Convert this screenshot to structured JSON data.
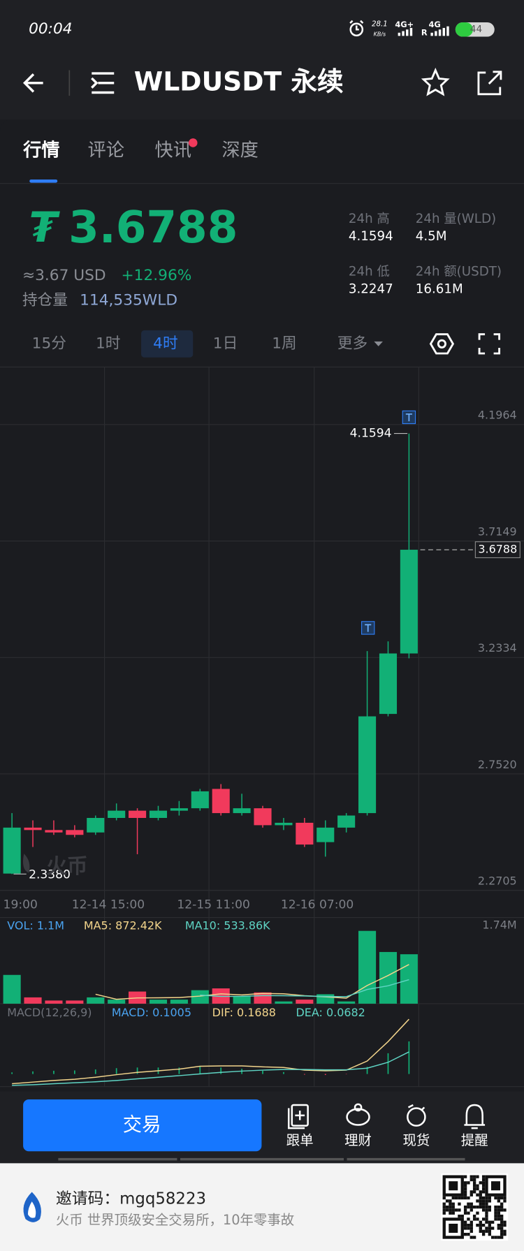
{
  "status_bar": {
    "time": "00:04",
    "net_speed": "28.1",
    "net_unit": "KB/s",
    "signal1": "4G+",
    "signal2": "4G",
    "roaming": "R",
    "battery": "44"
  },
  "header": {
    "title": "WLDUSDT 永续"
  },
  "tabs": [
    "行情",
    "评论",
    "快讯",
    "深度"
  ],
  "ticker": {
    "price": "3.6788",
    "usd": "≈3.67 USD",
    "change": "+12.96%",
    "oi_label": "持仓量",
    "oi_value": "114,535WLD",
    "stats": [
      {
        "label": "24h 高",
        "value": "4.1594"
      },
      {
        "label": "24h 量(WLD)",
        "value": "4.5M"
      },
      {
        "label": "24h 低",
        "value": "3.2247"
      },
      {
        "label": "24h 额(USDT)",
        "value": "16.61M"
      }
    ]
  },
  "intervals": [
    "15分",
    "1时",
    "4时",
    "1日",
    "1周",
    "更多"
  ],
  "watermark": "火币",
  "chart_data": [
    {
      "type": "candlestick",
      "open": [
        2.34,
        2.53,
        2.52,
        2.52,
        2.51,
        2.57,
        2.6,
        2.57,
        2.6,
        2.61,
        2.69,
        2.59,
        2.61,
        2.54,
        2.55,
        2.47,
        2.53,
        2.59,
        3.0,
        3.25
      ],
      "high": [
        2.59,
        2.56,
        2.56,
        2.54,
        2.58,
        2.63,
        2.61,
        2.62,
        2.64,
        2.69,
        2.71,
        2.67,
        2.62,
        2.57,
        2.57,
        2.56,
        2.59,
        3.26,
        3.3,
        4.1594
      ],
      "low": [
        2.338,
        2.45,
        2.5,
        2.49,
        2.5,
        2.56,
        2.42,
        2.56,
        2.58,
        2.6,
        2.58,
        2.58,
        2.53,
        2.52,
        2.45,
        2.41,
        2.51,
        2.58,
        2.99,
        3.23
      ],
      "close": [
        2.53,
        2.52,
        2.51,
        2.5,
        2.57,
        2.6,
        2.57,
        2.6,
        2.61,
        2.68,
        2.59,
        2.61,
        2.54,
        2.55,
        2.46,
        2.53,
        2.58,
        2.99,
        3.25,
        3.6788
      ],
      "up_color": "#12b076",
      "down_color": "#f13a5c",
      "ylim": [
        2.2705,
        4.4343
      ],
      "yticks": [
        2.2705,
        {
          "value": 2.752,
          "label": "2.7520"
        },
        3.2334,
        3.7149,
        4.1964
      ],
      "x_labels": [
        "19:00",
        "12-14 15:00",
        "12-15 11:00",
        "12-16 07:00"
      ],
      "high_label": "4.1594",
      "low_label": "2.3380",
      "grid": true
    },
    {
      "type": "bar",
      "title": "VOL: 1.1M",
      "values": [
        0.64,
        0.14,
        0.07,
        0.07,
        0.14,
        0.09,
        0.27,
        0.09,
        0.09,
        0.3,
        0.34,
        0.16,
        0.25,
        0.05,
        0.09,
        0.21,
        0.05,
        1.62,
        1.15,
        1.1
      ],
      "ylim": [
        0,
        1.74
      ],
      "yticks": [
        {
          "value": 1.74,
          "label": "1.74M"
        }
      ],
      "series": [
        {
          "name": "MA5: 872.42K",
          "color": "#f3d58c",
          "values": [
            null,
            null,
            null,
            null,
            0.21,
            0.098,
            0.128,
            0.132,
            0.136,
            0.168,
            0.218,
            0.196,
            0.228,
            0.22,
            0.178,
            0.152,
            0.122,
            0.404,
            0.626,
            0.872
          ]
        },
        {
          "name": "MA10: 533.86K",
          "color": "#5fd4c4",
          "values": [
            null,
            null,
            null,
            null,
            null,
            null,
            null,
            null,
            null,
            0.191,
            0.161,
            0.163,
            0.18,
            0.178,
            0.173,
            0.16,
            0.157,
            0.316,
            0.398,
            0.534
          ]
        }
      ]
    },
    {
      "type": "macd",
      "title": "MACD(12,26,9)",
      "macd_label": "MACD: 0.1005",
      "ylim": [
        -0.039,
        0.207
      ],
      "histogram": [
        0.005,
        0.008,
        0.01,
        0.011,
        0.014,
        0.018,
        0.02,
        0.02,
        0.02,
        0.024,
        0.02,
        0.016,
        0.01,
        0.006,
        -0.002,
        -0.003,
        -0.001,
        0.022,
        0.064,
        0.1005
      ],
      "series": [
        {
          "name": "DIF: 0.1688",
          "color": "#f3d58c",
          "values": [
            -0.03,
            -0.025,
            -0.02,
            -0.016,
            -0.01,
            -0.002,
            0.005,
            0.01,
            0.015,
            0.024,
            0.025,
            0.025,
            0.022,
            0.02,
            0.012,
            0.01,
            0.012,
            0.04,
            0.1,
            0.1688
          ]
        },
        {
          "name": "DEA: 0.0682",
          "color": "#5fd4c4",
          "values": [
            -0.035,
            -0.033,
            -0.03,
            -0.027,
            -0.024,
            -0.02,
            -0.015,
            -0.01,
            -0.005,
            0.0,
            0.005,
            0.009,
            0.012,
            0.014,
            0.014,
            0.013,
            0.013,
            0.018,
            0.036,
            0.0682
          ]
        }
      ]
    }
  ],
  "bottom_nav": {
    "trade": "交易",
    "items": [
      "跟单",
      "理财",
      "现货",
      "提醒"
    ]
  },
  "footer": {
    "invite": "邀请码：mgq58223",
    "slogan": "火币 世界顶级安全交易所，10年零事故"
  }
}
